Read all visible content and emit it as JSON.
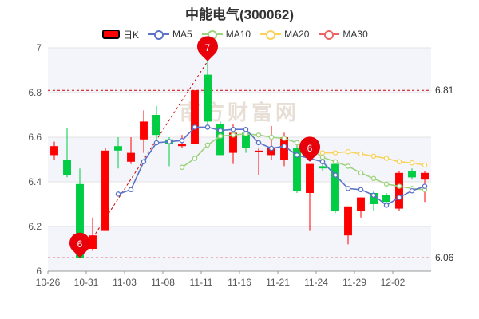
{
  "chart_data": {
    "type": "candlestick",
    "title": "中能电气(300062)",
    "legend": [
      "日K",
      "MA5",
      "MA10",
      "MA20",
      "MA30"
    ],
    "legend_placement": "top",
    "colors": {
      "up": "#ff0000",
      "down": "#00cc44",
      "ma5": "#5b73c8",
      "ma10": "#9ed27e",
      "ma20": "#f8d25c",
      "ma30": "#ec6464",
      "marker": "#e8000b",
      "guide": "#cc0000"
    },
    "ylim": [
      6,
      7
    ],
    "yticks": [
      "6",
      "6.2",
      "6.4",
      "6.6",
      "6.8",
      "7"
    ],
    "grid": true,
    "x_tick_labels": [
      "10-26",
      "10-31",
      "11-03",
      "11-08",
      "11-11",
      "11-16",
      "11-21",
      "11-24",
      "11-29",
      "12-02"
    ],
    "watermark": "南方财富网",
    "reference_lines": [
      {
        "label": "6.81",
        "value": 6.81
      },
      {
        "label": "6.06",
        "value": 6.06
      }
    ],
    "markers": [
      {
        "label": "6",
        "index": 2,
        "value": 6.06
      },
      {
        "label": "7",
        "index": 12,
        "value": 6.94
      },
      {
        "label": "6",
        "index": 20,
        "value": 6.49
      }
    ],
    "candles": [
      {
        "open": 6.52,
        "close": 6.56,
        "high": 6.58,
        "low": 6.5
      },
      {
        "open": 6.5,
        "close": 6.43,
        "high": 6.64,
        "low": 6.42
      },
      {
        "open": 6.39,
        "close": 6.06,
        "high": 6.46,
        "low": 6.06
      },
      {
        "open": 6.1,
        "close": 6.16,
        "high": 6.24,
        "low": 6.09
      },
      {
        "open": 6.18,
        "close": 6.54,
        "high": 6.55,
        "low": 6.18
      },
      {
        "open": 6.56,
        "close": 6.54,
        "high": 6.6,
        "low": 6.46
      },
      {
        "open": 6.49,
        "close": 6.53,
        "high": 6.6,
        "low": 6.48
      },
      {
        "open": 6.59,
        "close": 6.67,
        "high": 6.72,
        "low": 6.53
      },
      {
        "open": 6.7,
        "close": 6.61,
        "high": 6.74,
        "low": 6.59
      },
      {
        "open": 6.59,
        "close": 6.57,
        "high": 6.6,
        "low": 6.47
      },
      {
        "open": 6.56,
        "close": 6.57,
        "high": 6.61,
        "low": 6.55
      },
      {
        "open": 6.57,
        "close": 6.81,
        "high": 6.81,
        "low": 6.57
      },
      {
        "open": 6.88,
        "close": 6.67,
        "high": 6.94,
        "low": 6.64
      },
      {
        "open": 6.66,
        "close": 6.52,
        "high": 6.67,
        "low": 6.52
      },
      {
        "open": 6.53,
        "close": 6.62,
        "high": 6.66,
        "low": 6.48
      },
      {
        "open": 6.62,
        "close": 6.55,
        "high": 6.63,
        "low": 6.53
      },
      {
        "open": 6.54,
        "close": 6.54,
        "high": 6.55,
        "low": 6.43
      },
      {
        "open": 6.52,
        "close": 6.55,
        "high": 6.65,
        "low": 6.5
      },
      {
        "open": 6.5,
        "close": 6.6,
        "high": 6.62,
        "low": 6.47
      },
      {
        "open": 6.55,
        "close": 6.36,
        "high": 6.58,
        "low": 6.35
      },
      {
        "open": 6.35,
        "close": 6.48,
        "high": 6.48,
        "low": 6.18
      },
      {
        "open": 6.47,
        "close": 6.46,
        "high": 6.48,
        "low": 6.45
      },
      {
        "open": 6.48,
        "close": 6.27,
        "high": 6.5,
        "low": 6.26
      },
      {
        "open": 6.16,
        "close": 6.29,
        "high": 6.29,
        "low": 6.12
      },
      {
        "open": 6.27,
        "close": 6.33,
        "high": 6.33,
        "low": 6.24
      },
      {
        "open": 6.35,
        "close": 6.3,
        "high": 6.36,
        "low": 6.27
      },
      {
        "open": 6.34,
        "close": 6.31,
        "high": 6.35,
        "low": 6.3
      },
      {
        "open": 6.28,
        "close": 6.44,
        "high": 6.45,
        "low": 6.27
      },
      {
        "open": 6.45,
        "close": 6.42,
        "high": 6.46,
        "low": 6.41
      },
      {
        "open": 6.41,
        "close": 6.44,
        "high": 6.45,
        "low": 6.31
      }
    ],
    "ma5": [
      null,
      null,
      null,
      null,
      null,
      6.345,
      6.365,
      6.49,
      6.575,
      6.58,
      6.585,
      6.645,
      6.645,
      6.63,
      6.635,
      6.635,
      6.575,
      6.55,
      6.56,
      6.52,
      6.505,
      6.49,
      6.43,
      6.37,
      6.365,
      6.34,
      6.295,
      6.33,
      6.36,
      6.38
    ],
    "ma10": [
      null,
      null,
      null,
      null,
      null,
      null,
      null,
      null,
      null,
      null,
      6.465,
      6.505,
      6.565,
      6.605,
      6.61,
      6.615,
      6.61,
      6.6,
      6.595,
      6.575,
      6.55,
      6.51,
      6.49,
      6.47,
      6.44,
      6.415,
      6.39,
      6.38,
      6.37,
      6.365
    ],
    "ma20": [
      null,
      null,
      null,
      null,
      null,
      null,
      null,
      null,
      null,
      null,
      null,
      null,
      null,
      null,
      null,
      null,
      null,
      null,
      null,
      null,
      null,
      6.53,
      6.53,
      6.535,
      6.525,
      6.515,
      6.505,
      6.49,
      6.485,
      6.475
    ]
  }
}
